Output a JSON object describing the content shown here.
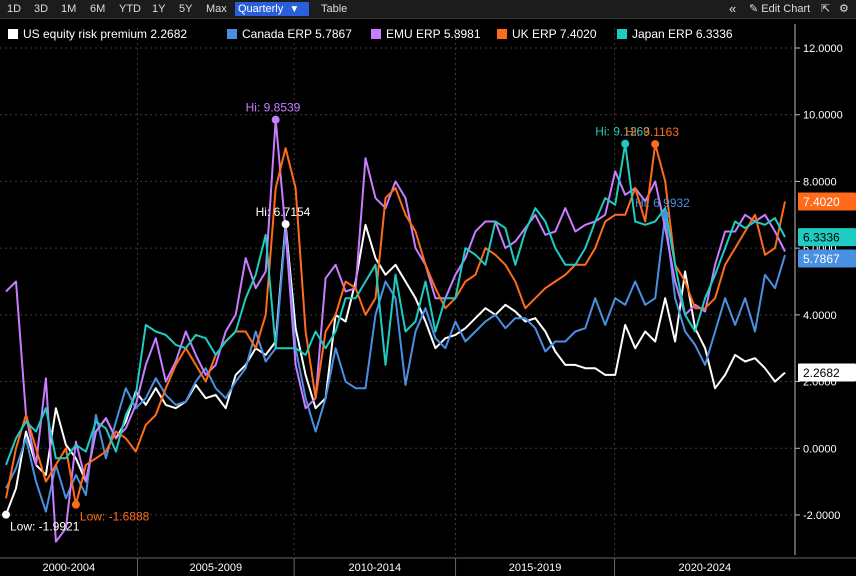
{
  "toolbar": {
    "periods": [
      "1D",
      "3D",
      "1M",
      "6M",
      "YTD",
      "1Y",
      "5Y",
      "Max"
    ],
    "frequency": "Quarterly",
    "frequency_arrow": "▼",
    "table_label": "Table",
    "collapse_icon": "«",
    "edit_label": "Edit Chart",
    "edit_icon": "✎",
    "settings_icon": "⚙",
    "popout_icon": "⇱"
  },
  "chart_data": {
    "type": "line",
    "x_labels": [
      "2000-2004",
      "2005-2009",
      "2010-2014",
      "2015-2019",
      "2020-2024"
    ],
    "y_range": [
      -3.2,
      12.6
    ],
    "y_ticks": [
      -2,
      0,
      2,
      4,
      6,
      8,
      10,
      12
    ],
    "y_tick_labels": [
      "-2.0000",
      "0.0000",
      "2.0000",
      "4.0000",
      "6.0000",
      "8.0000",
      "10.0000",
      "12.0000"
    ],
    "series": [
      {
        "name": "US equity risk premium",
        "last": "2.2682",
        "color": "#ffffff",
        "values": [
          -1.99,
          -1.2,
          0.5,
          -0.5,
          -0.8,
          1.2,
          0.1,
          -0.3,
          -1,
          0.5,
          0.9,
          0.3,
          0.8,
          1.7,
          1.3,
          1.8,
          1.3,
          1.2,
          1.4,
          1.9,
          1.5,
          1.6,
          1.2,
          2.2,
          2.5,
          3,
          2.8,
          3.2,
          6.72,
          3.6,
          2.2,
          1.2,
          1.5,
          4,
          3.8,
          5,
          6.7,
          5.7,
          5.2,
          5.5,
          5,
          4.5,
          3.8,
          3,
          3.3,
          3.4,
          3.6,
          3.9,
          4.2,
          4,
          4.3,
          4.1,
          3.8,
          3.9,
          3.5,
          2.9,
          2.5,
          2.5,
          2.4,
          2.4,
          2.2,
          2.2,
          3.7,
          3,
          3.5,
          3.2,
          4.5,
          3.2,
          5.3,
          3.6,
          3,
          1.8,
          2.2,
          2.8,
          2.6,
          2.7,
          2.4,
          2,
          2.27
        ]
      },
      {
        "name": "Canada ERP",
        "last": "5.7867",
        "color": "#4a90e2",
        "values": [
          -1.2,
          -0.6,
          0.3,
          -1,
          -1.9,
          -0.5,
          -1.5,
          -0.8,
          -1.4,
          1,
          -0.3,
          0.8,
          1.8,
          1.2,
          1.5,
          2.1,
          1.6,
          1.3,
          1.4,
          2,
          2.4,
          1.8,
          1.5,
          2,
          2.4,
          3.5,
          2.6,
          3,
          6.6,
          3,
          1.5,
          0.5,
          1.5,
          3,
          2,
          1.8,
          1.8,
          4,
          5,
          4.5,
          1.9,
          3.5,
          4.2,
          3.3,
          3,
          3.8,
          3.2,
          3.5,
          3.8,
          4,
          3.6,
          3.9,
          3.9,
          3.6,
          2.9,
          3.2,
          3.2,
          3.5,
          3.6,
          4.5,
          3.7,
          4.5,
          4.3,
          5,
          4.3,
          4.5,
          6.99,
          4.5,
          3.5,
          3.1,
          2.5,
          3.5,
          4.5,
          3.7,
          4.5,
          3.5,
          5.2,
          4.8,
          5.79
        ]
      },
      {
        "name": "EMU ERP",
        "last": "5.8981",
        "color": "#c77dff",
        "values": [
          4.7,
          5,
          1,
          -0.5,
          2.1,
          -2.8,
          -2.4,
          0.2,
          -1,
          0.5,
          0.9,
          0.3,
          0.6,
          1.3,
          2.5,
          3.3,
          2,
          2.6,
          3.5,
          2.8,
          2.2,
          2.5,
          3.5,
          4,
          5.7,
          4.8,
          5.3,
          9.85,
          6.5,
          2.5,
          1.2,
          1.5,
          5.1,
          5.5,
          4.7,
          4.8,
          8.7,
          7.5,
          7.2,
          8,
          7.5,
          6,
          5.5,
          4.5,
          4.5,
          5.2,
          5.7,
          6.5,
          6.8,
          6.8,
          6,
          6.2,
          6.6,
          7,
          6.4,
          6.5,
          7.2,
          6.5,
          6.7,
          6.8,
          7,
          8.3,
          7.6,
          7.8,
          7.4,
          8,
          6.6,
          5,
          4,
          4.3,
          4.1,
          5.5,
          6.5,
          6.5,
          7,
          6.8,
          7,
          6.5,
          5.9
        ]
      },
      {
        "name": "UK ERP",
        "last": "7.4020",
        "color": "#ff6b1a",
        "values": [
          -1.5,
          0,
          1,
          0,
          -1,
          -0.5,
          0,
          -1.69,
          -0.5,
          -0.3,
          -0.1,
          0.5,
          0.3,
          -0.1,
          0.7,
          1,
          1.8,
          2.5,
          3,
          2.5,
          2,
          2.8,
          3.2,
          3.5,
          3.5,
          3,
          4,
          7.8,
          9,
          7.8,
          3.5,
          1.5,
          3.5,
          4,
          5,
          4.8,
          4,
          4.5,
          7.5,
          7.8,
          7,
          6.5,
          5.5,
          4.8,
          4.2,
          4.5,
          5,
          5.2,
          6,
          5.8,
          5.5,
          5,
          4.2,
          4.5,
          4.8,
          5,
          5.2,
          5.5,
          5.5,
          6,
          6.8,
          7,
          7,
          7.8,
          6.8,
          9.12,
          8,
          5.5,
          5,
          4.2,
          4.2,
          4.5,
          5.5,
          6,
          6.5,
          7,
          5.8,
          6,
          7.4
        ]
      },
      {
        "name": "Japan ERP",
        "last": "6.3336",
        "color": "#1ecbc1",
        "values": [
          -0.5,
          0.3,
          0.8,
          0.5,
          1.2,
          -0.3,
          -0.3,
          0.1,
          -0.1,
          0.8,
          0.6,
          -0.1,
          1,
          1.6,
          3.7,
          3.5,
          3.4,
          3.1,
          3,
          3.4,
          3.3,
          2.8,
          3.2,
          3.5,
          4.5,
          5.2,
          6.4,
          3,
          3,
          3,
          2.8,
          3.5,
          3,
          3.5,
          4.5,
          4.5,
          5,
          5.5,
          2.5,
          5.2,
          3.5,
          3.8,
          5,
          3.5,
          4.5,
          4.5,
          6,
          5.8,
          5.5,
          6.8,
          6.6,
          5.5,
          6.5,
          7.2,
          6.8,
          6,
          5.5,
          5.5,
          6,
          6.8,
          7.5,
          7.3,
          9.13,
          6.8,
          6.7,
          6.8,
          7.2,
          5.5,
          4,
          3.5,
          4.5,
          5.2,
          6,
          6.8,
          6.6,
          6.8,
          6.7,
          6.9,
          6.33
        ]
      }
    ],
    "annotations": [
      {
        "series": 1,
        "kind": "hi",
        "text": "Hi: 6.9932",
        "x": 66,
        "y": 6.99
      },
      {
        "series": 0,
        "kind": "hi",
        "text": "Hi: 6.7154",
        "x": 28,
        "y": 6.72
      },
      {
        "series": 2,
        "kind": "hi",
        "text": "Hi: 9.8539",
        "x": 27,
        "y": 9.85
      },
      {
        "series": 4,
        "kind": "hi",
        "text": "Hi: 9.1263",
        "x": 62,
        "y": 9.13
      },
      {
        "series": 3,
        "kind": "hi",
        "text": "Hi: 9.1163",
        "x": 65,
        "y": 9.12
      },
      {
        "series": 0,
        "kind": "low",
        "text": "Low: -1.9921",
        "x": 0,
        "y": -1.99
      },
      {
        "series": 3,
        "kind": "low",
        "text": "Low: -1.6888",
        "x": 7,
        "y": -1.69
      }
    ]
  }
}
